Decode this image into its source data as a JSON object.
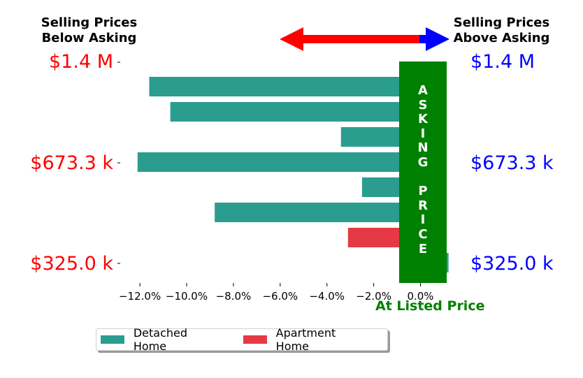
{
  "header_left": {
    "text": "Selling Prices\nBelow Asking",
    "color": "#ff0000"
  },
  "header_right": {
    "text": "Selling Prices\nAbove Asking",
    "color": "#0000ff"
  },
  "prices": {
    "left_top": "$1.4 M",
    "left_mid": "$673.3 k",
    "left_bottom": "$325.0 k",
    "right_top": "$1.4 M",
    "right_mid": "$673.3 k",
    "right_bottom": "$325.0 k"
  },
  "asking_label": "A\nS\nK\nI\nN\nG\n\nP\nR\nI\nC\nE",
  "at_listed_label": "At Listed Price",
  "legend": {
    "detached": "Detached Home",
    "apartment": "Apartment Home"
  },
  "colors": {
    "detached": "#2a9d8f",
    "apartment": "#e63946",
    "asking": "#008000",
    "arrow_left": "#ff0000",
    "arrow_right": "#0000ff"
  },
  "chart_data": {
    "type": "bar",
    "orientation": "horizontal",
    "x_ticks": [
      "−12.0%",
      "−10.0%",
      "−8.0%",
      "−6.0%",
      "−4.0%",
      "−2.0%",
      "0.0%"
    ],
    "xlim": [
      -12.9,
      1.3
    ],
    "series": [
      {
        "name": "Detached Home",
        "values": [
          -11.6,
          -10.7,
          -3.4,
          -12.1,
          -2.5,
          -8.8,
          null,
          1.2
        ]
      },
      {
        "name": "Apartment Home",
        "values": [
          null,
          null,
          null,
          null,
          null,
          null,
          -3.1,
          null
        ]
      }
    ],
    "legend_position": "bottom"
  }
}
